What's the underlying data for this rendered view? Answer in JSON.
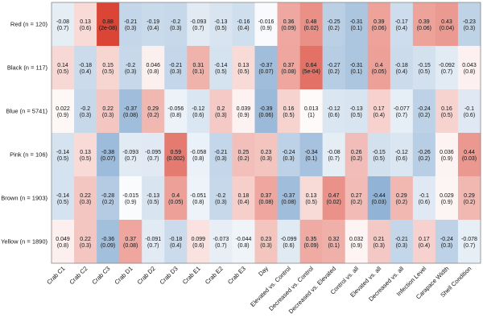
{
  "colors": {
    "positive": "#d7301f",
    "negative": "#2166ac",
    "neutral": "#ffffff",
    "frame": "#888888"
  },
  "chart_data": {
    "type": "heatmap",
    "title": "",
    "rows": [
      "Red (n = 120)",
      "Black (n = 117)",
      "Blue (n = 5741)",
      "Pink (n = 106)",
      "Brown (n = 1903)",
      "Yellow (n = 1890)"
    ],
    "columns": [
      "Crab C1",
      "Crab C2",
      "Crab C3",
      "Crab D1",
      "Crab D2",
      "Crab D3",
      "Crab E1",
      "Crab E2",
      "Crab E3",
      "Day",
      "Elevated vs. Control",
      "Decreased vs. Control",
      "Decreased vs. Elevated",
      "Control vs. all",
      "Elevated vs. all",
      "Decreased vs. all",
      "Infection Level",
      "Carapace Width",
      "Shell Condition"
    ],
    "values": [
      [
        "-0.08",
        "0.13",
        "0.88",
        "-0.21",
        "-0.19",
        "-0.2",
        "-0.093",
        "-0.13",
        "-0.16",
        "-0.016",
        "0.36",
        "0.48",
        "-0.25",
        "-0.31",
        "0.39",
        "-0.17",
        "0.39",
        "0.43",
        "-0.23"
      ],
      [
        "0.14",
        "-0.18",
        "0.15",
        "-0.2",
        "0.046",
        "-0.21",
        "0.31",
        "-0.14",
        "0.13",
        "-0.37",
        "0.37",
        "0.64",
        "-0.27",
        "-0.31",
        "0.4",
        "-0.18",
        "-0.15",
        "-0.092",
        "0.043"
      ],
      [
        "0.022",
        "-0.2",
        "0.22",
        "-0.37",
        "0.29",
        "-0.056",
        "-0.12",
        "0.2",
        "0.039",
        "-0.39",
        "0.16",
        "0.013",
        "-0.12",
        "-0.13",
        "0.17",
        "-0.077",
        "-0.24",
        "0.16",
        "-0.1"
      ],
      [
        "-0.14",
        "0.13",
        "-0.38",
        "-0.093",
        "-0.095",
        "0.59",
        "-0.058",
        "-0.21",
        "0.25",
        "0.23",
        "-0.24",
        "-0.34",
        "-0.08",
        "0.26",
        "-0.15",
        "-0.12",
        "-0.26",
        "0.036",
        "0.44"
      ],
      [
        "-0.14",
        "0.22",
        "-0.28",
        "-0.015",
        "-0.13",
        "0.4",
        "-0.051",
        "-0.2",
        "0.18",
        "0.37",
        "-0.37",
        "0.13",
        "0.47",
        "0.27",
        "-0.44",
        "0.29",
        "-0.1",
        "0.029",
        "0.29"
      ],
      [
        "0.049",
        "0.22",
        "-0.36",
        "0.37",
        "-0.091",
        "-0.18",
        "0.099",
        "-0.073",
        "-0.044",
        "0.23",
        "-0.099",
        "0.35",
        "0.32",
        "0.032",
        "0.21",
        "-0.21",
        "0.17",
        "-0.24",
        "-0.078"
      ]
    ],
    "pvalues": [
      [
        "(0.7)",
        "(0.6)",
        "(2e-08)",
        "(0.3)",
        "(0.4)",
        "(0.3)",
        "(0.7)",
        "(0.5)",
        "(0.4)",
        "(0.9)",
        "(0.09)",
        "(0.02)",
        "(0.2)",
        "(0.1)",
        "(0.06)",
        "(0.4)",
        "(0.06)",
        "(0.04)",
        "(0.3)"
      ],
      [
        "(0.5)",
        "(0.4)",
        "(0.5)",
        "(0.3)",
        "(0.8)",
        "(0.3)",
        "(0.1)",
        "(0.5)",
        "(0.5)",
        "(0.07)",
        "(0.08)",
        "(5e-04)",
        "(0.2)",
        "(0.1)",
        "(0.05)",
        "(0.4)",
        "(0.5)",
        "(0.7)",
        "(0.8)"
      ],
      [
        "(0.9)",
        "(0.3)",
        "(0.3)",
        "(0.08)",
        "(0.2)",
        "(0.8)",
        "(0.6)",
        "(0.3)",
        "(0.9)",
        "(0.06)",
        "(0.5)",
        "(1)",
        "(0.6)",
        "(0.5)",
        "(0.4)",
        "(0.7)",
        "(0.2)",
        "(0.5)",
        "(0.6)"
      ],
      [
        "(0.5)",
        "(0.5)",
        "(0.07)",
        "(0.7)",
        "(0.7)",
        "(0.002)",
        "(0.8)",
        "(0.3)",
        "(0.2)",
        "(0.3)",
        "(0.3)",
        "(0.1)",
        "(0.7)",
        "(0.2)",
        "(0.5)",
        "(0.6)",
        "(0.2)",
        "(0.9)",
        "(0.03)"
      ],
      [
        "(0.5)",
        "(0.3)",
        "(0.2)",
        "(0.9)",
        "(0.5)",
        "(0.05)",
        "(0.8)",
        "(0.3)",
        "(0.4)",
        "(0.08)",
        "(0.08)",
        "(0.5)",
        "(0.02)",
        "(0.2)",
        "(0.03)",
        "(0.2)",
        "(0.6)",
        "(0.9)",
        "(0.2)"
      ],
      [
        "(0.8)",
        "(0.3)",
        "(0.09)",
        "(0.08)",
        "(0.7)",
        "(0.4)",
        "(0.6)",
        "(0.7)",
        "(0.8)",
        "(0.3)",
        "(0.6)",
        "(0.09)",
        "(0.1)",
        "(0.9)",
        "(0.3)",
        "(0.3)",
        "(0.4)",
        "(0.3)",
        "(0.7)"
      ]
    ],
    "color_range": [
      -1,
      1
    ],
    "legend": "none"
  }
}
